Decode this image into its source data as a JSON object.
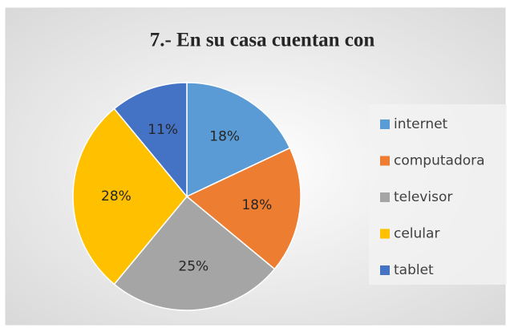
{
  "chart_data": {
    "type": "pie",
    "title": "7.- En su casa cuentan con",
    "categories": [
      "internet",
      "computadora",
      "televisor",
      "celular",
      "tablet"
    ],
    "values": [
      18,
      18,
      25,
      28,
      11
    ],
    "value_labels": [
      "18%",
      "18%",
      "25%",
      "28%",
      "11%"
    ],
    "colors": [
      "#5b9bd5",
      "#ed7d31",
      "#a5a5a5",
      "#ffc000",
      "#4472c4"
    ],
    "legend": "right"
  }
}
